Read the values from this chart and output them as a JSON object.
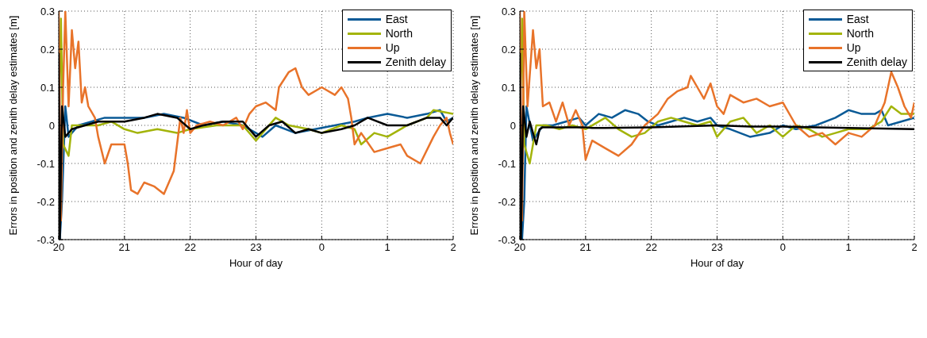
{
  "chart_data": [
    {
      "type": "line",
      "xlabel": "Hour of day",
      "ylabel": "Errors in position and zenith delay estimates [m]",
      "xlim": [
        "--01-01T20:00",
        "--01-02T02:00"
      ],
      "xticks": [
        {
          "value": "--01-01T20:00",
          "label": "20"
        },
        {
          "value": "--01-01T21:00",
          "label": "21"
        },
        {
          "value": "--01-01T22:00",
          "label": "22"
        },
        {
          "value": "--01-01T23:00",
          "label": "23"
        },
        {
          "value": "--01-02T00:00",
          "label": "0"
        },
        {
          "value": "--01-02T01:00",
          "label": "1"
        },
        {
          "value": "--01-02T02:00",
          "label": "2"
        }
      ],
      "ylim": [
        -0.3,
        0.3
      ],
      "yticks": [
        -0.3,
        -0.2,
        -0.1,
        0,
        0.1,
        0.2,
        0.3
      ],
      "grid": true,
      "legend": "top right",
      "marker": "none",
      "line_style": "solid",
      "series": [
        {
          "name": "East",
          "color": "#0a5a96",
          "x": [
            "--01-01T20:00",
            "--01-01T20:01",
            "--01-01T20:03",
            "--01-01T20:06",
            "--01-01T20:09",
            "--01-01T20:18",
            "--01-01T20:30",
            "--01-01T20:42",
            "--01-01T21:00",
            "--01-01T21:18",
            "--01-01T21:36",
            "--01-01T21:54",
            "--01-01T22:12",
            "--01-01T22:30",
            "--01-01T22:48",
            "--01-01T23:00",
            "--01-01T23:06",
            "--01-01T23:18",
            "--01-01T23:36",
            "--01-01T23:54",
            "--01-02T00:12",
            "--01-02T00:30",
            "--01-02T00:42",
            "--01-02T01:00",
            "--01-02T01:18",
            "--01-02T01:36",
            "--01-02T01:48",
            "--01-02T01:54",
            "--01-02T02:00"
          ],
          "values": [
            0.0,
            -0.3,
            -0.2,
            0.05,
            -0.03,
            0.0,
            0.01,
            0.02,
            0.02,
            0.02,
            0.03,
            0.02,
            0.0,
            0.01,
            0.0,
            -0.02,
            -0.03,
            0.0,
            -0.02,
            -0.01,
            0.0,
            0.01,
            0.02,
            0.03,
            0.02,
            0.03,
            0.04,
            0.01,
            0.02
          ]
        },
        {
          "name": "North",
          "color": "#a3b40a",
          "x": [
            "--01-01T20:00",
            "--01-01T20:02",
            "--01-01T20:04",
            "--01-01T20:09",
            "--01-01T20:12",
            "--01-01T20:24",
            "--01-01T20:36",
            "--01-01T20:48",
            "--01-01T21:00",
            "--01-01T21:12",
            "--01-01T21:30",
            "--01-01T21:48",
            "--01-01T22:00",
            "--01-01T22:24",
            "--01-01T22:48",
            "--01-01T23:00",
            "--01-01T23:06",
            "--01-01T23:18",
            "--01-01T23:30",
            "--01-01T23:48",
            "--01-02T00:00",
            "--01-02T00:18",
            "--01-02T00:30",
            "--01-02T00:36",
            "--01-02T00:48",
            "--01-02T01:00",
            "--01-02T01:18",
            "--01-02T01:36",
            "--01-02T01:42",
            "--01-02T02:00"
          ],
          "values": [
            0.0,
            0.28,
            -0.05,
            -0.08,
            0.0,
            0.0,
            0.0,
            0.01,
            -0.01,
            -0.02,
            -0.01,
            -0.02,
            -0.01,
            0.0,
            0.0,
            -0.04,
            -0.02,
            0.02,
            0.0,
            -0.01,
            -0.02,
            0.0,
            -0.01,
            -0.05,
            -0.02,
            -0.03,
            0.0,
            0.02,
            0.04,
            0.03
          ]
        },
        {
          "name": "Up",
          "color": "#e8732a",
          "x": [
            "--01-01T20:00",
            "--01-01T20:02",
            "--01-01T20:04",
            "--01-01T20:06",
            "--01-01T20:09",
            "--01-01T20:12",
            "--01-01T20:15",
            "--01-01T20:18",
            "--01-01T20:21",
            "--01-01T20:24",
            "--01-01T20:27",
            "--01-01T20:33",
            "--01-01T20:36",
            "--01-01T20:42",
            "--01-01T20:48",
            "--01-01T21:00",
            "--01-01T21:03",
            "--01-01T21:06",
            "--01-01T21:12",
            "--01-01T21:18",
            "--01-01T21:27",
            "--01-01T21:36",
            "--01-01T21:42",
            "--01-01T21:45",
            "--01-01T21:48",
            "--01-01T21:51",
            "--01-01T21:54",
            "--01-01T21:57",
            "--01-01T22:00",
            "--01-01T22:06",
            "--01-01T22:18",
            "--01-01T22:30",
            "--01-01T22:42",
            "--01-01T22:48",
            "--01-01T22:54",
            "--01-01T23:00",
            "--01-01T23:09",
            "--01-01T23:18",
            "--01-01T23:21",
            "--01-01T23:30",
            "--01-01T23:36",
            "--01-01T23:42",
            "--01-01T23:48",
            "--01-02T00:00",
            "--01-02T00:12",
            "--01-02T00:18",
            "--01-02T00:24",
            "--01-02T00:27",
            "--01-02T00:30",
            "--01-02T00:36",
            "--01-02T00:48",
            "--01-02T01:00",
            "--01-02T01:12",
            "--01-02T01:18",
            "--01-02T01:30",
            "--01-02T01:42",
            "--01-02T01:48",
            "--01-02T01:54",
            "--01-02T01:57",
            "--01-02T02:00"
          ],
          "values": [
            0.3,
            -0.25,
            0.1,
            0.3,
            0.05,
            0.25,
            0.15,
            0.22,
            0.06,
            0.1,
            0.05,
            0.02,
            -0.03,
            -0.1,
            -0.05,
            -0.05,
            -0.1,
            -0.17,
            -0.18,
            -0.15,
            -0.16,
            -0.18,
            -0.14,
            -0.12,
            -0.05,
            0.02,
            -0.02,
            0.04,
            -0.02,
            0.0,
            0.01,
            0.0,
            0.02,
            -0.01,
            0.03,
            0.05,
            0.06,
            0.04,
            0.1,
            0.14,
            0.15,
            0.1,
            0.08,
            0.1,
            0.08,
            0.1,
            0.07,
            0.02,
            -0.05,
            -0.02,
            -0.07,
            -0.06,
            -0.05,
            -0.08,
            -0.1,
            -0.03,
            0.0,
            0.02,
            -0.02,
            -0.05
          ]
        },
        {
          "name": "Zenith delay",
          "color": "#000000",
          "x": [
            "--01-01T20:00",
            "--01-01T20:01",
            "--01-01T20:03",
            "--01-01T20:06",
            "--01-01T20:12",
            "--01-01T20:24",
            "--01-01T20:36",
            "--01-01T21:00",
            "--01-01T21:18",
            "--01-01T21:30",
            "--01-01T21:48",
            "--01-01T22:00",
            "--01-01T22:12",
            "--01-01T22:30",
            "--01-01T22:48",
            "--01-01T23:00",
            "--01-01T23:12",
            "--01-01T23:24",
            "--01-01T23:36",
            "--01-01T23:48",
            "--01-02T00:00",
            "--01-02T00:18",
            "--01-02T00:30",
            "--01-02T00:42",
            "--01-02T01:00",
            "--01-02T01:18",
            "--01-02T01:36",
            "--01-02T01:48",
            "--01-02T01:54",
            "--01-02T02:00"
          ],
          "values": [
            0.19,
            -0.3,
            0.05,
            -0.03,
            -0.01,
            0.0,
            0.01,
            0.01,
            0.02,
            0.03,
            0.02,
            -0.01,
            0.0,
            0.01,
            0.01,
            -0.03,
            0.0,
            0.01,
            -0.02,
            -0.01,
            -0.02,
            -0.01,
            0.0,
            0.02,
            0.0,
            0.0,
            0.02,
            0.02,
            0.0,
            0.02
          ]
        }
      ]
    },
    {
      "type": "line",
      "xlabel": "Hour of day",
      "ylabel": "Errors in position and zenith delay estimates [m]",
      "xlim": [
        "--01-01T20:00",
        "--01-02T02:00"
      ],
      "xticks": [
        {
          "value": "--01-01T20:00",
          "label": "20"
        },
        {
          "value": "--01-01T21:00",
          "label": "21"
        },
        {
          "value": "--01-01T22:00",
          "label": "22"
        },
        {
          "value": "--01-01T23:00",
          "label": "23"
        },
        {
          "value": "--01-02T00:00",
          "label": "0"
        },
        {
          "value": "--01-02T01:00",
          "label": "1"
        },
        {
          "value": "--01-02T02:00",
          "label": "2"
        }
      ],
      "ylim": [
        -0.3,
        0.3
      ],
      "yticks": [
        -0.3,
        -0.2,
        -0.1,
        0,
        0.1,
        0.2,
        0.3
      ],
      "grid": true,
      "legend": "top right",
      "marker": "none",
      "line_style": "solid",
      "series": [
        {
          "name": "East",
          "color": "#0a5a96",
          "x": [
            "--01-01T20:00",
            "--01-01T20:02",
            "--01-01T20:04",
            "--01-01T20:06",
            "--01-01T20:12",
            "--01-01T20:21",
            "--01-01T20:30",
            "--01-01T20:42",
            "--01-01T20:54",
            "--01-01T21:00",
            "--01-01T21:12",
            "--01-01T21:24",
            "--01-01T21:36",
            "--01-01T21:48",
            "--01-01T21:57",
            "--01-01T22:06",
            "--01-01T22:18",
            "--01-01T22:30",
            "--01-01T22:42",
            "--01-01T22:54",
            "--01-01T23:00",
            "--01-01T23:12",
            "--01-01T23:30",
            "--01-01T23:48",
            "--01-02T00:00",
            "--01-02T00:12",
            "--01-02T00:30",
            "--01-02T00:48",
            "--01-02T01:00",
            "--01-02T01:12",
            "--01-02T01:24",
            "--01-02T01:30",
            "--01-02T01:36",
            "--01-02T01:48",
            "--01-02T02:00"
          ],
          "values": [
            0.0,
            -0.3,
            -0.2,
            0.05,
            -0.04,
            0.0,
            0.0,
            0.01,
            0.02,
            0.0,
            0.03,
            0.02,
            0.04,
            0.03,
            0.01,
            0.0,
            0.01,
            0.02,
            0.01,
            0.02,
            0.0,
            -0.01,
            -0.03,
            -0.02,
            0.0,
            -0.01,
            0.0,
            0.02,
            0.04,
            0.03,
            0.03,
            0.04,
            0.0,
            0.01,
            0.02
          ]
        },
        {
          "name": "North",
          "color": "#a3b40a",
          "x": [
            "--01-01T20:00",
            "--01-01T20:02",
            "--01-01T20:04",
            "--01-01T20:09",
            "--01-01T20:15",
            "--01-01T20:24",
            "--01-01T20:36",
            "--01-01T20:48",
            "--01-01T21:00",
            "--01-01T21:18",
            "--01-01T21:30",
            "--01-01T21:42",
            "--01-01T21:54",
            "--01-01T22:06",
            "--01-01T22:18",
            "--01-01T22:30",
            "--01-01T22:42",
            "--01-01T22:54",
            "--01-01T23:00",
            "--01-01T23:12",
            "--01-01T23:24",
            "--01-01T23:36",
            "--01-01T23:48",
            "--01-02T00:00",
            "--01-02T00:12",
            "--01-02T00:24",
            "--01-02T00:36",
            "--01-02T00:48",
            "--01-02T01:00",
            "--01-02T01:18",
            "--01-02T01:30",
            "--01-02T01:39",
            "--01-02T01:48",
            "--01-02T02:00"
          ],
          "values": [
            0.0,
            0.28,
            -0.05,
            -0.1,
            0.0,
            0.0,
            -0.01,
            0.0,
            -0.01,
            0.02,
            -0.01,
            -0.03,
            -0.02,
            0.01,
            0.02,
            0.01,
            0.0,
            0.01,
            -0.03,
            0.01,
            0.02,
            -0.02,
            0.0,
            -0.03,
            0.0,
            -0.01,
            -0.03,
            -0.02,
            -0.01,
            -0.01,
            0.01,
            0.05,
            0.03,
            0.03
          ]
        },
        {
          "name": "Up",
          "color": "#e8732a",
          "x": [
            "--01-01T20:00",
            "--01-01T20:02",
            "--01-01T20:04",
            "--01-01T20:07",
            "--01-01T20:12",
            "--01-01T20:15",
            "--01-01T20:18",
            "--01-01T20:21",
            "--01-01T20:27",
            "--01-01T20:33",
            "--01-01T20:39",
            "--01-01T20:45",
            "--01-01T20:51",
            "--01-01T20:57",
            "--01-01T21:00",
            "--01-01T21:06",
            "--01-01T21:18",
            "--01-01T21:30",
            "--01-01T21:42",
            "--01-01T21:54",
            "--01-01T22:06",
            "--01-01T22:15",
            "--01-01T22:24",
            "--01-01T22:33",
            "--01-01T22:36",
            "--01-01T22:42",
            "--01-01T22:48",
            "--01-01T22:54",
            "--01-01T23:00",
            "--01-01T23:06",
            "--01-01T23:12",
            "--01-01T23:24",
            "--01-01T23:36",
            "--01-01T23:48",
            "--01-02T00:00",
            "--01-02T00:12",
            "--01-02T00:24",
            "--01-02T00:36",
            "--01-02T00:48",
            "--01-02T01:00",
            "--01-02T01:12",
            "--01-02T01:24",
            "--01-02T01:33",
            "--01-02T01:39",
            "--01-02T01:45",
            "--01-02T01:51",
            "--01-02T01:57",
            "--01-02T02:00"
          ],
          "values": [
            0.3,
            -0.25,
            0.3,
            0.05,
            0.25,
            0.15,
            0.2,
            0.05,
            0.06,
            0.01,
            0.06,
            0.0,
            0.04,
            0.0,
            -0.09,
            -0.04,
            -0.06,
            -0.08,
            -0.05,
            0.0,
            0.03,
            0.07,
            0.09,
            0.1,
            0.13,
            0.1,
            0.07,
            0.11,
            0.05,
            0.03,
            0.08,
            0.06,
            0.07,
            0.05,
            0.06,
            0.0,
            -0.03,
            -0.02,
            -0.05,
            -0.02,
            -0.03,
            0.0,
            0.06,
            0.14,
            0.1,
            0.05,
            0.02,
            0.06
          ]
        },
        {
          "name": "Zenith delay",
          "color": "#000000",
          "x": [
            "--01-01T20:00",
            "--01-01T20:01",
            "--01-01T20:03",
            "--01-01T20:06",
            "--01-01T20:09",
            "--01-01T20:15",
            "--01-01T20:18",
            "--01-01T20:21",
            "--01-01T21:00",
            "--01-01T21:06",
            "--01-01T22:00",
            "--01-01T23:00",
            "--01-01T23:30",
            "--01-02T00:00",
            "--01-02T00:30",
            "--01-02T01:00",
            "--01-02T02:00"
          ],
          "values": [
            0.19,
            -0.3,
            0.05,
            -0.03,
            0.01,
            -0.05,
            -0.01,
            -0.005,
            -0.005,
            -0.007,
            -0.005,
            0.0,
            -0.003,
            -0.003,
            -0.005,
            -0.007,
            -0.01
          ]
        }
      ]
    }
  ]
}
